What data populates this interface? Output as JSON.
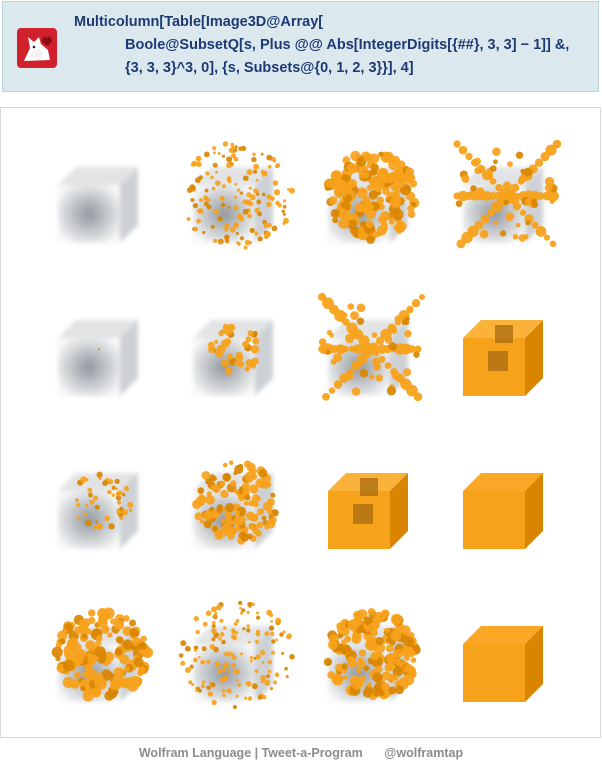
{
  "code": {
    "line1": "Multicolumn[Table[Image3D@Array[",
    "line2": "Boole@SubsetQ[s, Plus @@ Abs[IntegerDigits[{##}, 3, 3] − 1]] &,",
    "line3": "{3, 3, 3}^3, 0], {s, Subsets@{0, 1, 2, 3}}], 4]"
  },
  "output": {
    "columns": 4,
    "cells": [
      {
        "fill": "empty"
      },
      {
        "fill": "sparse-fractal"
      },
      {
        "fill": "dense-fractal"
      },
      {
        "fill": "cross-fractal"
      },
      {
        "fill": "empty-dot"
      },
      {
        "fill": "small-cluster"
      },
      {
        "fill": "cross-fractal"
      },
      {
        "fill": "menger-sponge"
      },
      {
        "fill": "small-scatter"
      },
      {
        "fill": "medium-fractal"
      },
      {
        "fill": "menger-sponge"
      },
      {
        "fill": "solid-cube"
      },
      {
        "fill": "dense-fractal"
      },
      {
        "fill": "sparse-fractal"
      },
      {
        "fill": "dense-fractal"
      },
      {
        "fill": "solid-cube"
      }
    ],
    "colors": {
      "voxel": "#f7a21b",
      "voxel_dark": "#d98500",
      "fog": "#5d6670"
    }
  },
  "footer": {
    "left": "Wolfram Language | Tweet-a-Program",
    "right": "@wolframtap"
  }
}
